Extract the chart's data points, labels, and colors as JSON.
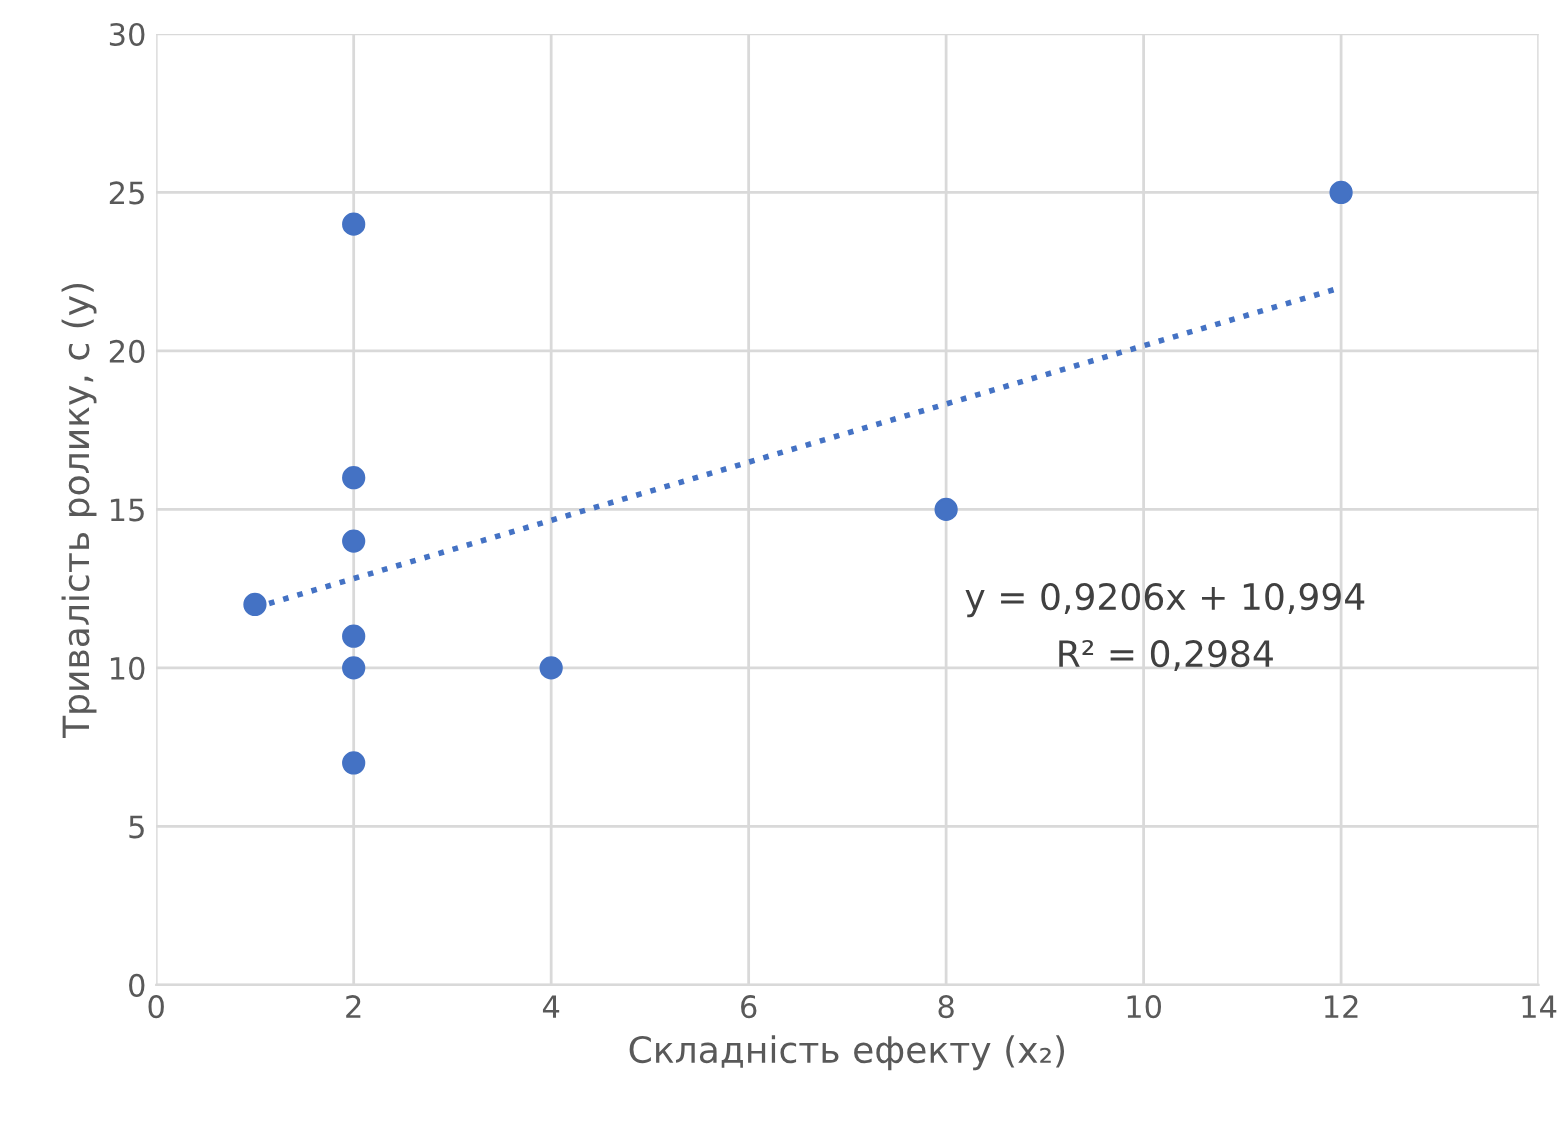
{
  "chart_data": {
    "type": "scatter",
    "xlabel": "Складність ефекту (x₂)",
    "ylabel": "Тривалість ролику, с (y)",
    "xlim": [
      0,
      14
    ],
    "xticks": [
      0,
      2,
      4,
      6,
      8,
      10,
      12,
      14
    ],
    "ylim": [
      0,
      30
    ],
    "yticks": [
      0,
      5,
      10,
      15,
      20,
      25,
      30
    ],
    "grid": true,
    "series": [
      {
        "marker": "circle",
        "color": "#4472c4",
        "x": [
          1,
          2,
          2,
          2,
          2,
          2,
          2,
          4,
          8,
          12
        ],
        "values": [
          12,
          24,
          16,
          14,
          11,
          10,
          7,
          10,
          15,
          25
        ]
      },
      {
        "type": "line",
        "color": "#4472c4",
        "line_style": "dotted",
        "marker": "none",
        "x": [
          1,
          12
        ],
        "values": [
          11.9,
          22.0
        ]
      }
    ],
    "annotations": [
      "y = 0,9206x + 10,994",
      "R² = 0,2984"
    ]
  }
}
